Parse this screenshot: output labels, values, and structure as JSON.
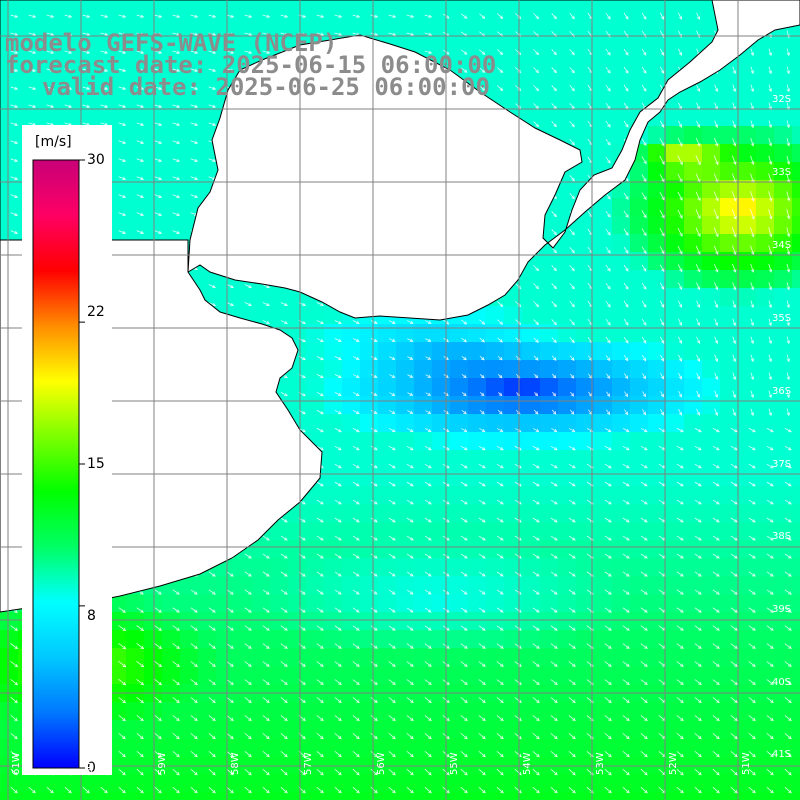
{
  "header": {
    "model": "modelo GEFS-WAVE (NCEP)",
    "forecast": "forecast date: 2025-06-15 06:00:00",
    "valid": "valid date: 2025-06-25 06:00:00"
  },
  "colorbar": {
    "unit": "[m/s]",
    "min": 0,
    "max": 30,
    "ticks": [
      "30",
      "22",
      "15",
      "8",
      "0"
    ],
    "tick_values": [
      30,
      22,
      15,
      8,
      0
    ],
    "colors": [
      "#0000ff",
      "#0078ff",
      "#00c8ff",
      "#00ffff",
      "#00ff64",
      "#00ff00",
      "#7cff00",
      "#ffff00",
      "#ff8c00",
      "#ff0000",
      "#ff0064",
      "#c80078"
    ]
  },
  "map": {
    "lat_labels": [
      "32S",
      "33S",
      "34S",
      "35S",
      "36S",
      "37S",
      "38S",
      "39S",
      "40S",
      "41S"
    ],
    "lon_labels": [
      "61W",
      "60W",
      "59W",
      "58W",
      "57W",
      "56W",
      "55W",
      "54W",
      "53W",
      "52W",
      "51W"
    ],
    "land_color": "#ffffff",
    "grid_color": "#808080"
  }
}
